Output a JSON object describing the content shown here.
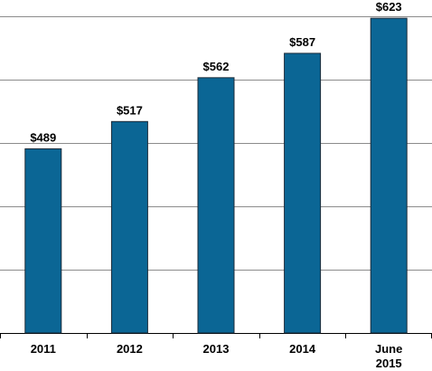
{
  "chart_data": {
    "type": "bar",
    "categories": [
      "2011",
      "2012",
      "2013",
      "2014",
      "June 2015"
    ],
    "values": [
      489,
      517,
      562,
      587,
      623
    ],
    "value_labels": [
      "$489",
      "$517",
      "$562",
      "$587",
      "$623"
    ],
    "color": "#0b6695",
    "ylim": [
      300,
      625
    ],
    "yticks": [
      300,
      365,
      430,
      495,
      560,
      625
    ],
    "grid": true
  }
}
